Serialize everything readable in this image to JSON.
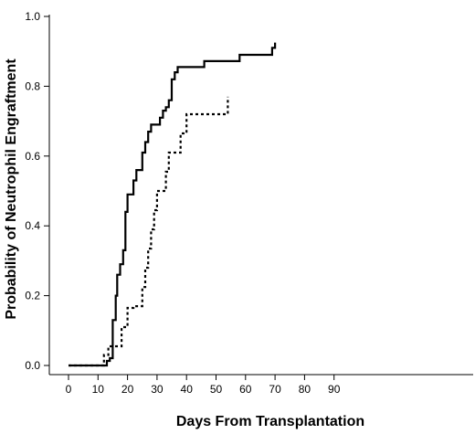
{
  "chart_data": {
    "type": "line",
    "step": true,
    "title": "",
    "xlabel": "Days From Transplantation",
    "ylabel": "Probability of Neutrophil Engraftment",
    "xlim": [
      0,
      100
    ],
    "ylim": [
      0,
      1.0
    ],
    "xticks": [
      0,
      10,
      20,
      30,
      40,
      50,
      60,
      70,
      80,
      90
    ],
    "xtick_labels": [
      "0",
      "10",
      "20",
      "30",
      "40",
      "50",
      "60",
      "70",
      "80",
      "90"
    ],
    "yticks": [
      0,
      0.2,
      0.4,
      0.6,
      0.8,
      1.0
    ],
    "ytick_labels": [
      "0.0",
      "0.2",
      "0.4",
      "0.6",
      "0.8",
      "1.0"
    ],
    "grid": false,
    "legend": "none",
    "series": [
      {
        "line_style": "solid",
        "color": "#000000",
        "points": [
          [
            0,
            0
          ],
          [
            13,
            0
          ],
          [
            13,
            0.013
          ],
          [
            14,
            0.013
          ],
          [
            14,
            0.021
          ],
          [
            15,
            0.021
          ],
          [
            15,
            0.13
          ],
          [
            16,
            0.13
          ],
          [
            16,
            0.2
          ],
          [
            16.5,
            0.2
          ],
          [
            16.5,
            0.26
          ],
          [
            17.5,
            0.26
          ],
          [
            17.5,
            0.29
          ],
          [
            18.5,
            0.29
          ],
          [
            18.5,
            0.33
          ],
          [
            19.3,
            0.33
          ],
          [
            19.3,
            0.44
          ],
          [
            20,
            0.44
          ],
          [
            20,
            0.49
          ],
          [
            22,
            0.49
          ],
          [
            22,
            0.53
          ],
          [
            23,
            0.53
          ],
          [
            23,
            0.56
          ],
          [
            25,
            0.56
          ],
          [
            25,
            0.61
          ],
          [
            26,
            0.61
          ],
          [
            26,
            0.64
          ],
          [
            27,
            0.64
          ],
          [
            27,
            0.67
          ],
          [
            28,
            0.67
          ],
          [
            28,
            0.69
          ],
          [
            31,
            0.69
          ],
          [
            31,
            0.71
          ],
          [
            32,
            0.71
          ],
          [
            32,
            0.73
          ],
          [
            33,
            0.73
          ],
          [
            33,
            0.74
          ],
          [
            34,
            0.74
          ],
          [
            34,
            0.76
          ],
          [
            35,
            0.76
          ],
          [
            35,
            0.82
          ],
          [
            36,
            0.82
          ],
          [
            36,
            0.84
          ],
          [
            37,
            0.84
          ],
          [
            37,
            0.855
          ],
          [
            46,
            0.855
          ],
          [
            46,
            0.872
          ],
          [
            58,
            0.872
          ],
          [
            58,
            0.89
          ],
          [
            69,
            0.89
          ],
          [
            69,
            0.91
          ],
          [
            70,
            0.91
          ],
          [
            70,
            0.925
          ]
        ]
      },
      {
        "line_style": "dotted",
        "color": "#000000",
        "points": [
          [
            0,
            0
          ],
          [
            12,
            0
          ],
          [
            12,
            0.03
          ],
          [
            13.5,
            0.03
          ],
          [
            13.5,
            0.055
          ],
          [
            18,
            0.055
          ],
          [
            18,
            0.11
          ],
          [
            20,
            0.11
          ],
          [
            20,
            0.165
          ],
          [
            22,
            0.165
          ],
          [
            22,
            0.17
          ],
          [
            25,
            0.17
          ],
          [
            25,
            0.225
          ],
          [
            26,
            0.225
          ],
          [
            26,
            0.28
          ],
          [
            27,
            0.28
          ],
          [
            27,
            0.335
          ],
          [
            28,
            0.335
          ],
          [
            28,
            0.39
          ],
          [
            29,
            0.39
          ],
          [
            29,
            0.445
          ],
          [
            30,
            0.445
          ],
          [
            30,
            0.5
          ],
          [
            33,
            0.5
          ],
          [
            33,
            0.555
          ],
          [
            34,
            0.555
          ],
          [
            34,
            0.61
          ],
          [
            38,
            0.61
          ],
          [
            38,
            0.665
          ],
          [
            40,
            0.665
          ],
          [
            40,
            0.72
          ],
          [
            54,
            0.72
          ],
          [
            54,
            0.77
          ]
        ]
      }
    ]
  }
}
